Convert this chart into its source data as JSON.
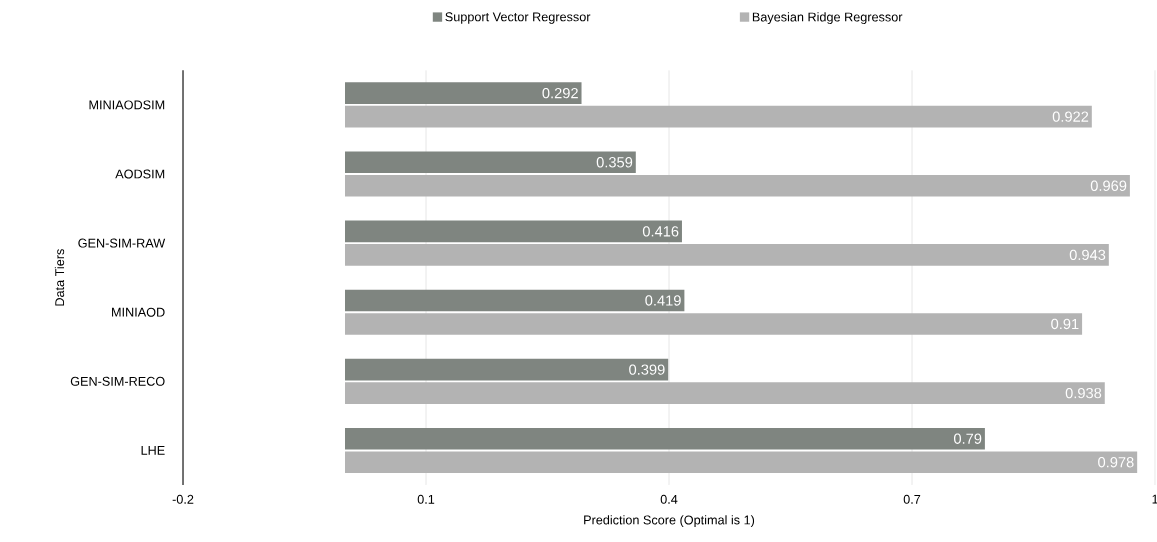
{
  "chart_data": {
    "type": "bar",
    "orientation": "horizontal",
    "xlabel": "Prediction Score (Optimal is 1)",
    "ylabel": "Data Tiers",
    "categories": [
      "MINIAODSIM",
      "AODSIM",
      "GEN-SIM-RAW",
      "MINIAOD",
      "GEN-SIM-RECO",
      "LHE"
    ],
    "series": [
      {
        "name": "Support Vector Regressor",
        "color": "#7f8580",
        "values": [
          0.292,
          0.359,
          0.416,
          0.419,
          0.399,
          0.79
        ]
      },
      {
        "name": "Bayesian Ridge Regressor",
        "color": "#b3b3b3",
        "values": [
          0.922,
          0.969,
          0.943,
          0.91,
          0.938,
          0.978
        ]
      }
    ],
    "xlim": [
      -0.2,
      1
    ],
    "xticks": [
      -0.2,
      0.1,
      0.4,
      0.7,
      1
    ],
    "grid": "x",
    "legend": "top",
    "data_labels": true
  }
}
